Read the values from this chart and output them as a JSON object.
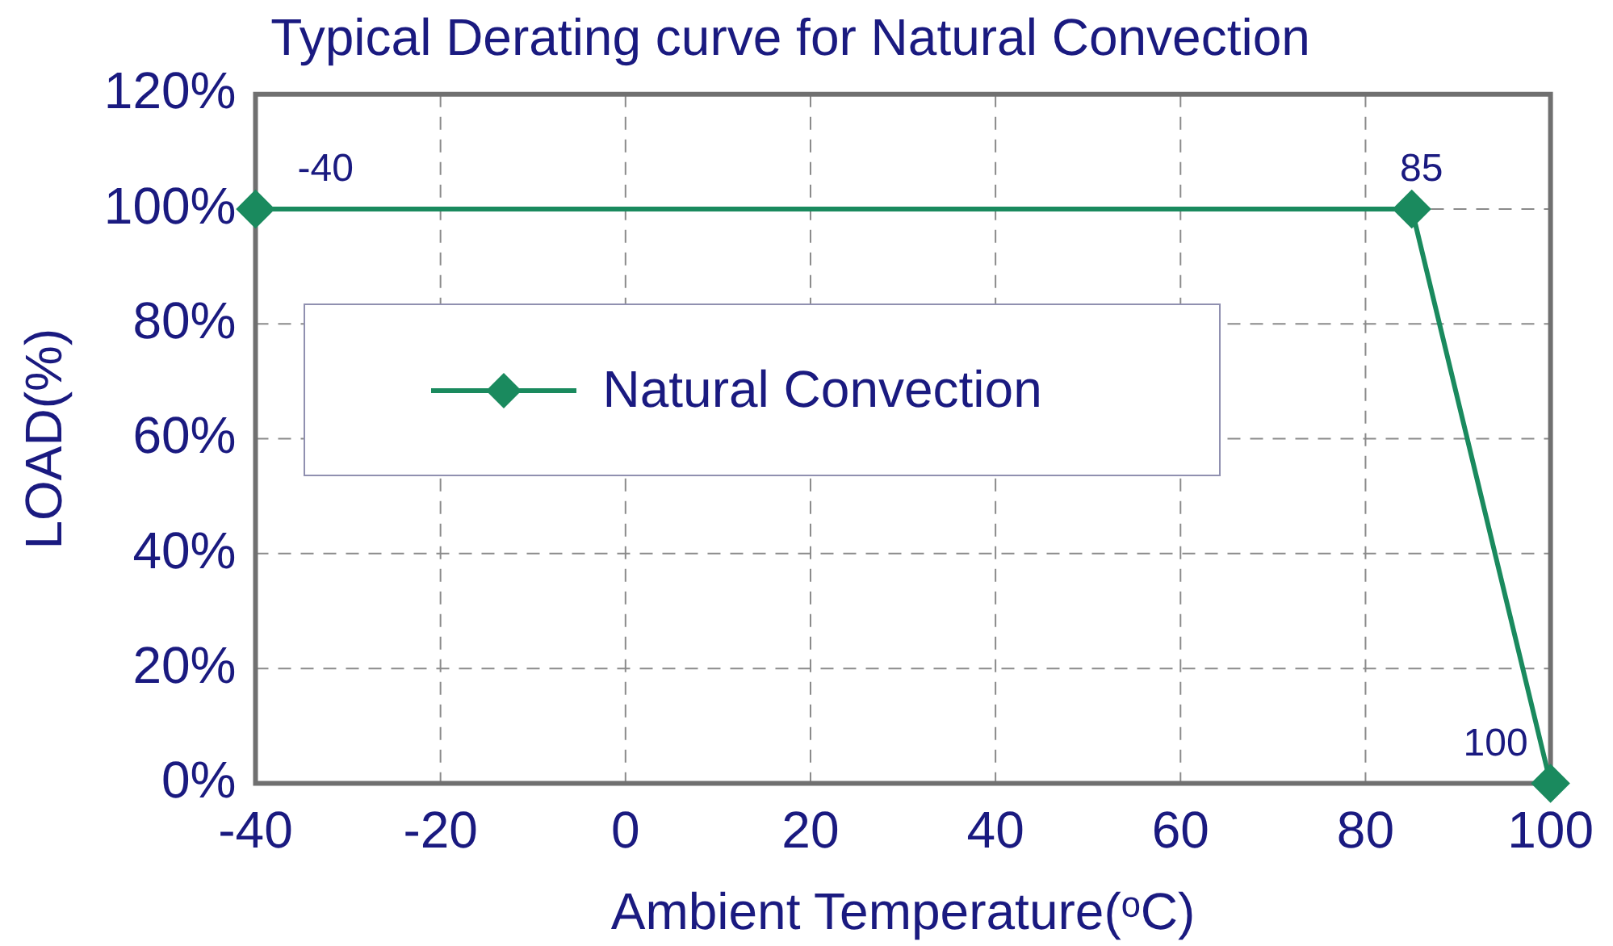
{
  "chart_data": {
    "type": "line",
    "title": "Typical Derating curve for Natural Convection",
    "xlabel": "Ambient Temperature(ᵒC)",
    "ylabel": "LOAD(%)",
    "x": [
      -40,
      85,
      100
    ],
    "series": [
      {
        "name": "Natural Convection",
        "color": "#1a8a5e",
        "values": [
          100,
          100,
          0
        ]
      }
    ],
    "xlim": [
      -40,
      100
    ],
    "xticks": [
      -40,
      -20,
      0,
      20,
      40,
      60,
      80,
      100
    ],
    "ylim": [
      0,
      120
    ],
    "yticks": [
      {
        "value": 0,
        "label": "0%"
      },
      {
        "value": 20,
        "label": "20%"
      },
      {
        "value": 40,
        "label": "40%"
      },
      {
        "value": 60,
        "label": "60%"
      },
      {
        "value": 80,
        "label": "80%"
      },
      {
        "value": 100,
        "label": "100%"
      },
      {
        "value": 120,
        "label": "120%"
      }
    ],
    "annotations": [
      {
        "text": "-40",
        "x": -40,
        "y": 100
      },
      {
        "text": "85",
        "x": 85,
        "y": 100
      },
      {
        "text": "100",
        "x": 100,
        "y": 0
      }
    ],
    "grid": true,
    "legend": "left",
    "marker": "diamond",
    "line_style": "solid"
  }
}
